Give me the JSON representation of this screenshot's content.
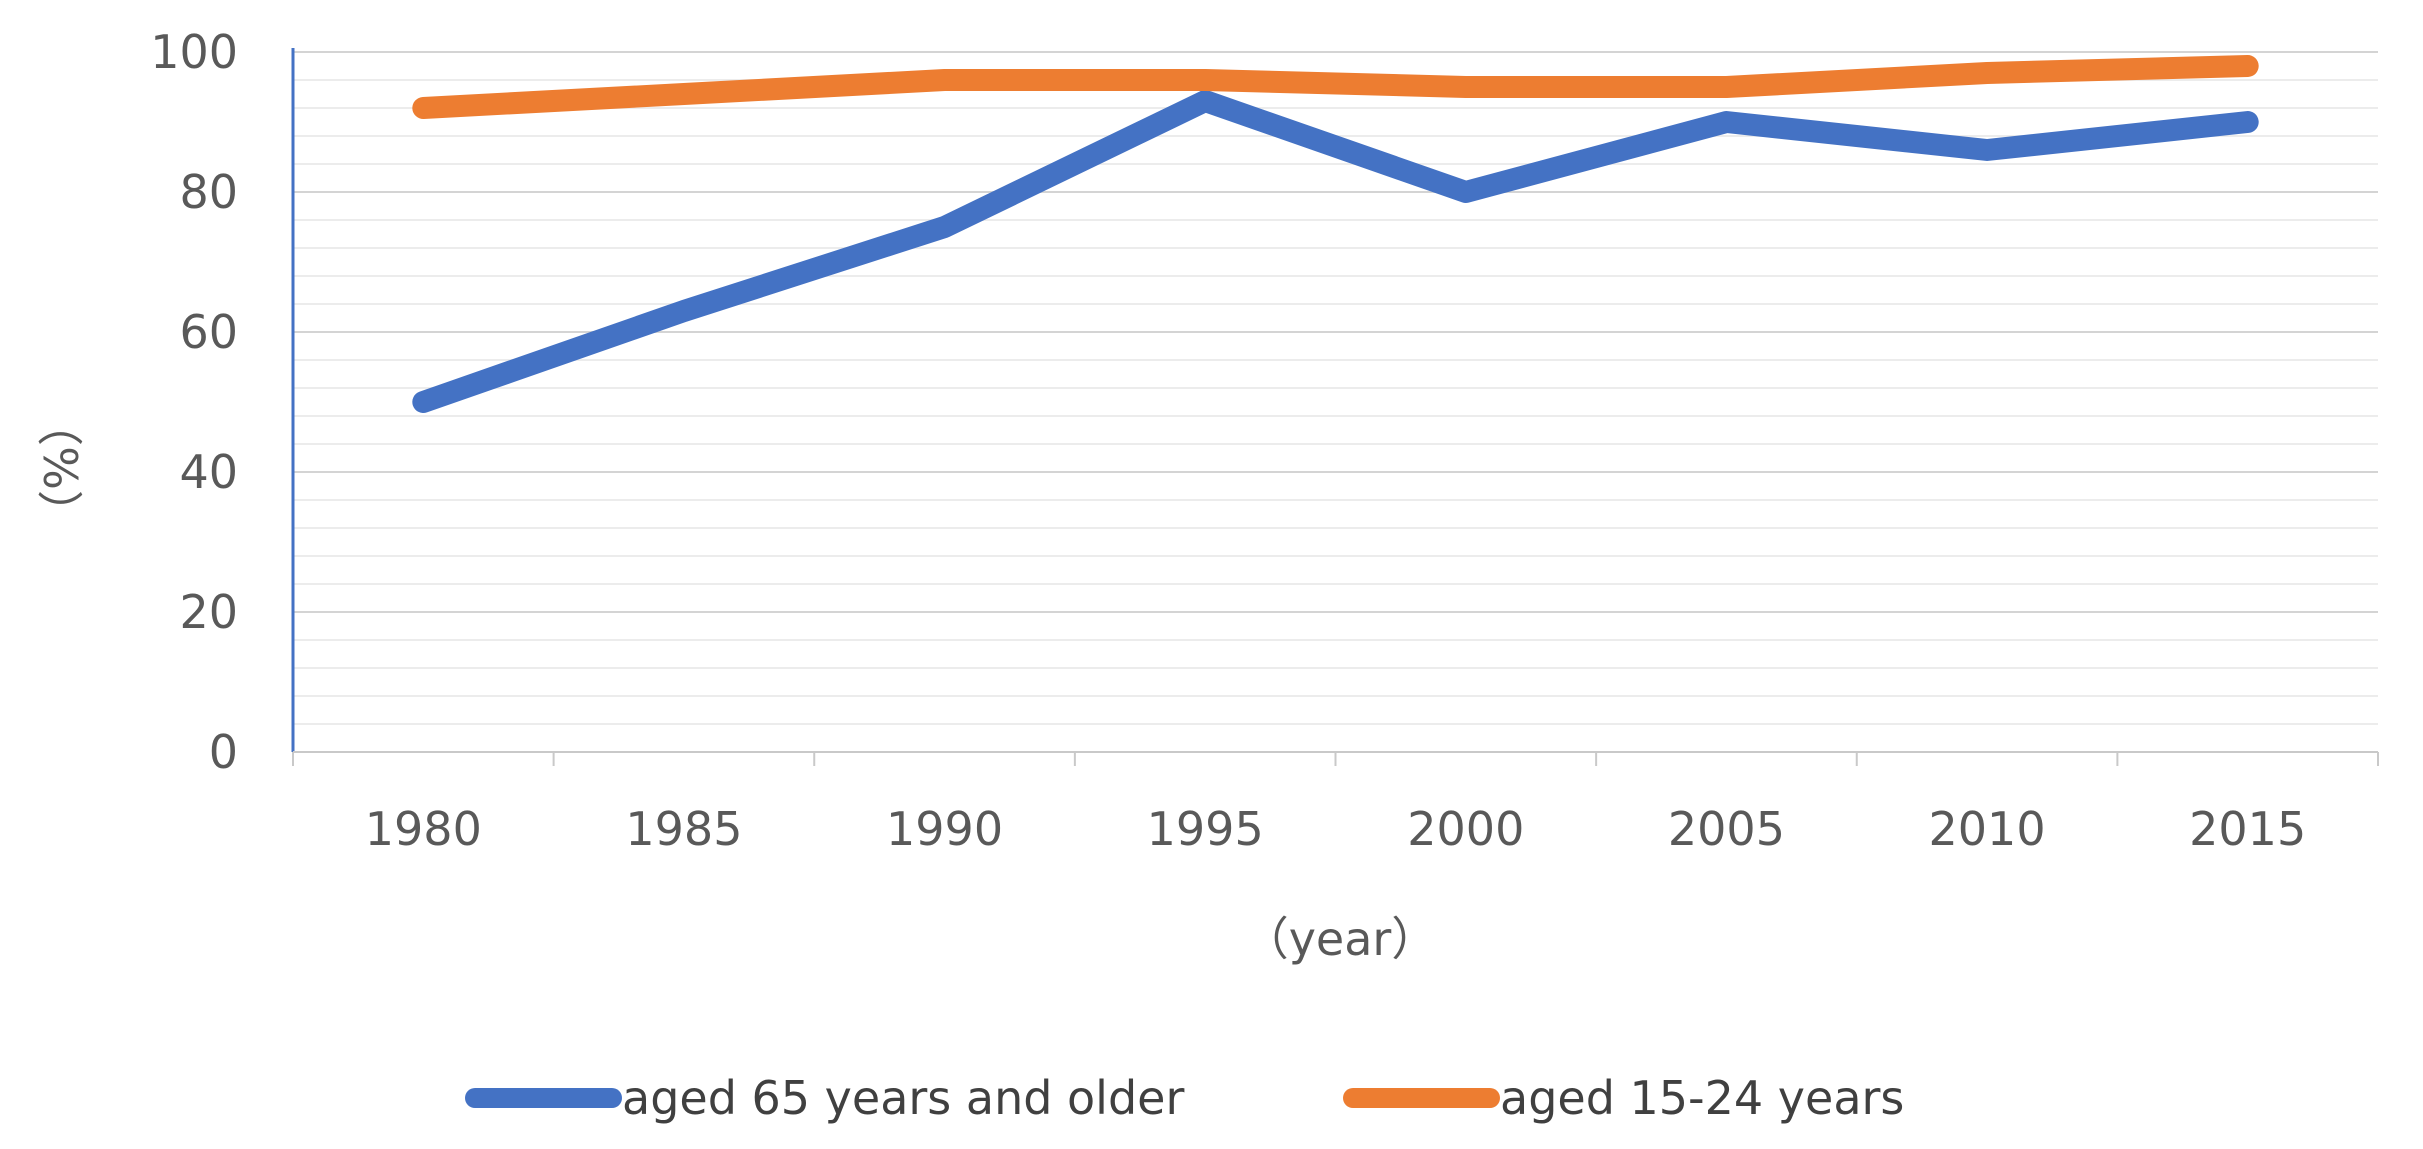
{
  "chart_data": {
    "type": "line",
    "title": "",
    "xlabel": "（year）",
    "ylabel": "（%）",
    "categories": [
      "1980",
      "1985",
      "1990",
      "1995",
      "2000",
      "2005",
      "2010",
      "2015"
    ],
    "yticks": [
      "0",
      "20",
      "40",
      "60",
      "80",
      "100"
    ],
    "ylim": [
      0,
      100
    ],
    "grid": true,
    "legend_position": "bottom",
    "series": [
      {
        "name": "aged 65 years and older",
        "color": "#4472C4",
        "values": [
          50,
          63,
          75,
          93,
          80,
          90,
          86,
          90
        ]
      },
      {
        "name": "aged 15-24 years",
        "color": "#ED7D31",
        "values": [
          92,
          94,
          96,
          96,
          95,
          95,
          97,
          98
        ]
      }
    ]
  }
}
